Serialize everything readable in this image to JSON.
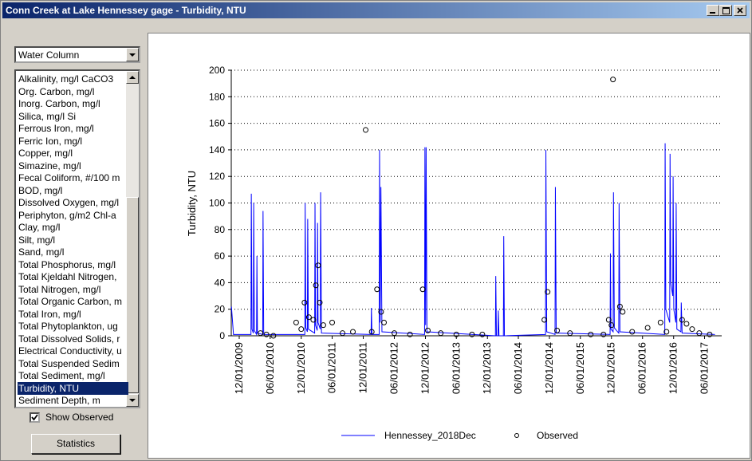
{
  "window": {
    "title": "Conn Creek at Lake Hennessey gage - Turbidity, NTU"
  },
  "sidebar": {
    "dropdown": "Water Column",
    "list": [
      "Alkalinity, mg/l CaCO3",
      "Org. Carbon, mg/l",
      "Inorg. Carbon, mg/l",
      "Silica, mg/l Si",
      "Ferrous Iron, mg/l",
      "Ferric Ion, mg/l",
      "Copper, mg/l",
      "Simazine, mg/l",
      "Fecal Coliform, #/100 m",
      "BOD, mg/l",
      "Dissolved Oxygen, mg/l",
      "Periphyton, g/m2 Chl-a",
      "Clay, mg/l",
      "Silt, mg/l",
      "Sand, mg/l",
      "Total Phosphorus, mg/l",
      "Total Kjeldahl Nitrogen,",
      "Total Nitrogen, mg/l",
      "Total Organic Carbon, m",
      "Total Iron, mg/l",
      "Total Phytoplankton, ug",
      "Total Dissolved Solids, r",
      "Electrical Conductivity, u",
      "Total Suspended Sedim",
      "Total Sediment, mg/l",
      "Turbidity, NTU",
      "Sediment Depth, m"
    ],
    "selected": 25,
    "checkbox": {
      "label": "Show Observed",
      "checked": true
    },
    "button": "Statistics"
  },
  "chart_data": {
    "type": "line",
    "ylabel": "Turbidity, NTU",
    "xlim": [
      "10/15/2009",
      "09/10/2017"
    ],
    "xticks": [
      "12/01/2009",
      "06/01/2010",
      "12/01/2010",
      "06/01/2011",
      "12/01/2011",
      "06/01/2012",
      "12/01/2012",
      "06/01/2013",
      "12/01/2013",
      "06/01/2014",
      "12/01/2014",
      "06/01/2015",
      "12/01/2015",
      "06/01/2016",
      "12/01/2016",
      "06/01/2017"
    ],
    "ylim": [
      0,
      200
    ],
    "yticks": [
      0,
      20,
      40,
      60,
      80,
      100,
      120,
      140,
      160,
      180,
      200
    ],
    "grid": true,
    "series": [
      {
        "name": "Hennessey_2018Dec",
        "type": "line",
        "color": "#0000ff",
        "x": [
          "10/16/2009",
          "10/28/2009",
          "02/08/2010",
          "02/10/2010",
          "02/14/2010",
          "02/22/2010",
          "02/24/2010",
          "02/28/2010",
          "03/13/2010",
          "03/15/2010",
          "03/18/2010",
          "04/18/2010",
          "04/20/2010",
          "04/24/2010",
          "12/22/2010",
          "12/24/2010",
          "12/28/2010",
          "01/06/2011",
          "01/08/2011",
          "01/12/2011",
          "02/18/2011",
          "02/20/2011",
          "02/23/2011",
          "03/05/2011",
          "03/07/2011",
          "03/10/2011",
          "03/23/2011",
          "03/25/2011",
          "03/30/2011",
          "01/16/2012",
          "01/18/2012",
          "01/21/2012",
          "03/04/2012",
          "03/06/2012",
          "03/10/2012",
          "03/14/2012",
          "03/20/2012",
          "11/26/2012",
          "11/28/2012",
          "12/02/2012",
          "12/05/2012",
          "12/10/2012",
          "01/17/2014",
          "01/19/2014",
          "01/23/2014",
          "02/01/2014",
          "02/03/2014",
          "02/07/2014",
          "03/05/2014",
          "03/07/2014",
          "03/11/2014",
          "11/08/2014",
          "11/10/2014",
          "11/15/2014",
          "01/03/2015",
          "01/05/2015",
          "01/10/2015",
          "11/23/2015",
          "11/25/2015",
          "11/28/2015",
          "12/11/2015",
          "12/13/2015",
          "12/18/2015",
          "01/13/2016",
          "01/15/2016",
          "01/20/2016",
          "10/10/2016",
          "10/12/2016",
          "10/16/2016",
          "11/08/2016",
          "11/10/2016",
          "11/14/2016",
          "11/26/2016",
          "11/28/2016",
          "12/02/2016",
          "12/14/2016",
          "12/16/2016",
          "12/20/2016",
          "01/13/2017",
          "01/15/2017",
          "01/20/2017",
          "08/01/2017"
        ],
        "values": [
          22,
          1,
          1,
          107,
          5,
          2,
          100,
          4,
          1,
          60,
          2,
          1,
          94,
          1,
          1,
          100,
          6,
          3,
          88,
          5,
          2,
          100,
          8,
          4,
          85,
          10,
          5,
          108,
          2,
          1,
          21,
          1,
          1,
          140,
          10,
          112,
          3,
          1,
          142,
          8,
          142,
          3,
          0,
          45,
          0,
          0,
          19,
          0,
          0,
          75,
          0,
          1,
          140,
          3,
          1,
          112,
          2,
          1,
          62,
          5,
          3,
          108,
          6,
          2,
          100,
          3,
          1,
          145,
          20,
          10,
          137,
          40,
          30,
          120,
          20,
          10,
          100,
          5,
          3,
          25,
          2,
          1
        ]
      },
      {
        "name": "Observed",
        "type": "scatter",
        "color": "#000000",
        "x": [
          "04/05/2010",
          "05/10/2010",
          "06/20/2010",
          "11/01/2010",
          "12/01/2010",
          "12/20/2010",
          "01/15/2011",
          "02/10/2011",
          "02/25/2011",
          "03/10/2011",
          "03/20/2011",
          "04/10/2011",
          "06/01/2011",
          "08/01/2011",
          "10/01/2011",
          "12/15/2011",
          "01/20/2012",
          "02/20/2012",
          "03/15/2012",
          "04/01/2012",
          "06/01/2012",
          "09/01/2012",
          "11/15/2012",
          "12/15/2012",
          "03/01/2013",
          "06/01/2013",
          "09/01/2013",
          "11/01/2013",
          "11/01/2014",
          "11/20/2014",
          "01/15/2015",
          "04/01/2015",
          "08/01/2015",
          "10/15/2015",
          "11/15/2015",
          "12/01/2015",
          "12/10/2015",
          "01/20/2016",
          "02/05/2016",
          "04/01/2016",
          "07/01/2016",
          "09/15/2016",
          "10/20/2016",
          "01/20/2017",
          "02/15/2017",
          "03/20/2017",
          "05/01/2017",
          "07/01/2017"
        ],
        "values": [
          2,
          1,
          0,
          10,
          5,
          25,
          14,
          12,
          38,
          53,
          25,
          8,
          10,
          2,
          3,
          155,
          3,
          35,
          18,
          10,
          2,
          1,
          35,
          4,
          2,
          1,
          1,
          1,
          12,
          33,
          4,
          2,
          1,
          1,
          12,
          8,
          193,
          22,
          18,
          3,
          6,
          10,
          3,
          12,
          9,
          5,
          2,
          1
        ]
      }
    ]
  }
}
